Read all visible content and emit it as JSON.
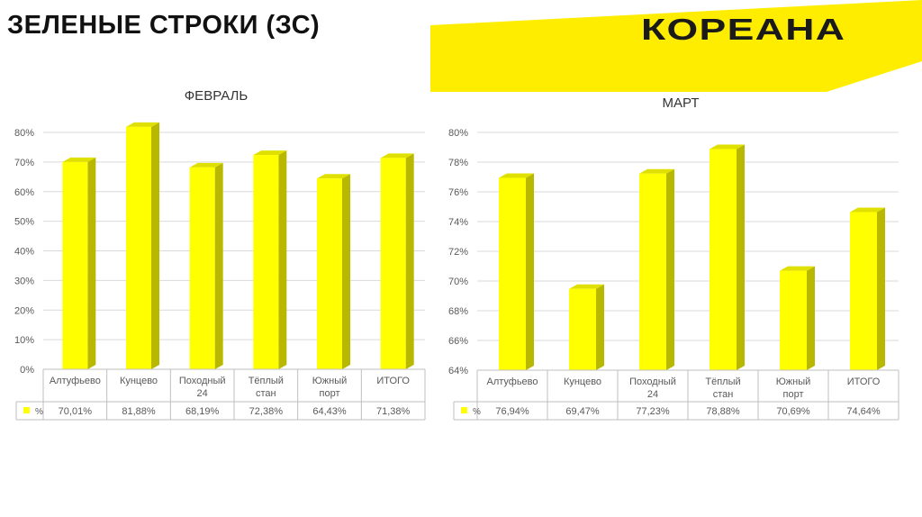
{
  "header": {
    "title": "ЗЕЛЕНЫЕ СТРОКИ (ЗС)",
    "logo_text": "КОРЕАНА"
  },
  "colors": {
    "brand_yellow": "#FFED00",
    "bar_front": "#FFFF00",
    "bar_side": "#B8B800",
    "bar_top": "#E0E000",
    "gridline": "#D9D9D9",
    "table_border": "#BFBFBF",
    "text": "#595959"
  },
  "chart_data": [
    {
      "id": "feb",
      "type": "bar",
      "title": "ФЕВРАЛЬ",
      "categories": [
        "Алтуфьево",
        "Кунцево",
        "Походный 24",
        "Тёплый стан",
        "Южный порт",
        "ИТОГО"
      ],
      "series": [
        {
          "name": "%",
          "values": [
            70.01,
            81.88,
            68.19,
            72.38,
            64.43,
            71.38
          ],
          "labels": [
            "70,01%",
            "81,88%",
            "68,19%",
            "72,38%",
            "64,43%",
            "71,38%"
          ]
        }
      ],
      "ylim": [
        0,
        80
      ],
      "yticks": [
        0,
        10,
        20,
        30,
        40,
        50,
        60,
        70,
        80
      ],
      "ytick_labels": [
        "0%",
        "10%",
        "20%",
        "30%",
        "40%",
        "50%",
        "60%",
        "70%",
        "80%"
      ],
      "grid": true,
      "legend": "data-table"
    },
    {
      "id": "mar",
      "type": "bar",
      "title": "МАРТ",
      "categories": [
        "Алтуфьево",
        "Кунцево",
        "Походный 24",
        "Тёплый стан",
        "Южный порт",
        "ИТОГО"
      ],
      "series": [
        {
          "name": "%",
          "values": [
            76.94,
            69.47,
            77.23,
            78.88,
            70.69,
            74.64
          ],
          "labels": [
            "76,94%",
            "69,47%",
            "77,23%",
            "78,88%",
            "70,69%",
            "74,64%"
          ]
        }
      ],
      "ylim": [
        64,
        80
      ],
      "yticks": [
        64,
        66,
        68,
        70,
        72,
        74,
        76,
        78,
        80
      ],
      "ytick_labels": [
        "64%",
        "66%",
        "68%",
        "70%",
        "72%",
        "74%",
        "76%",
        "78%",
        "80%"
      ],
      "grid": true,
      "legend": "data-table"
    }
  ]
}
